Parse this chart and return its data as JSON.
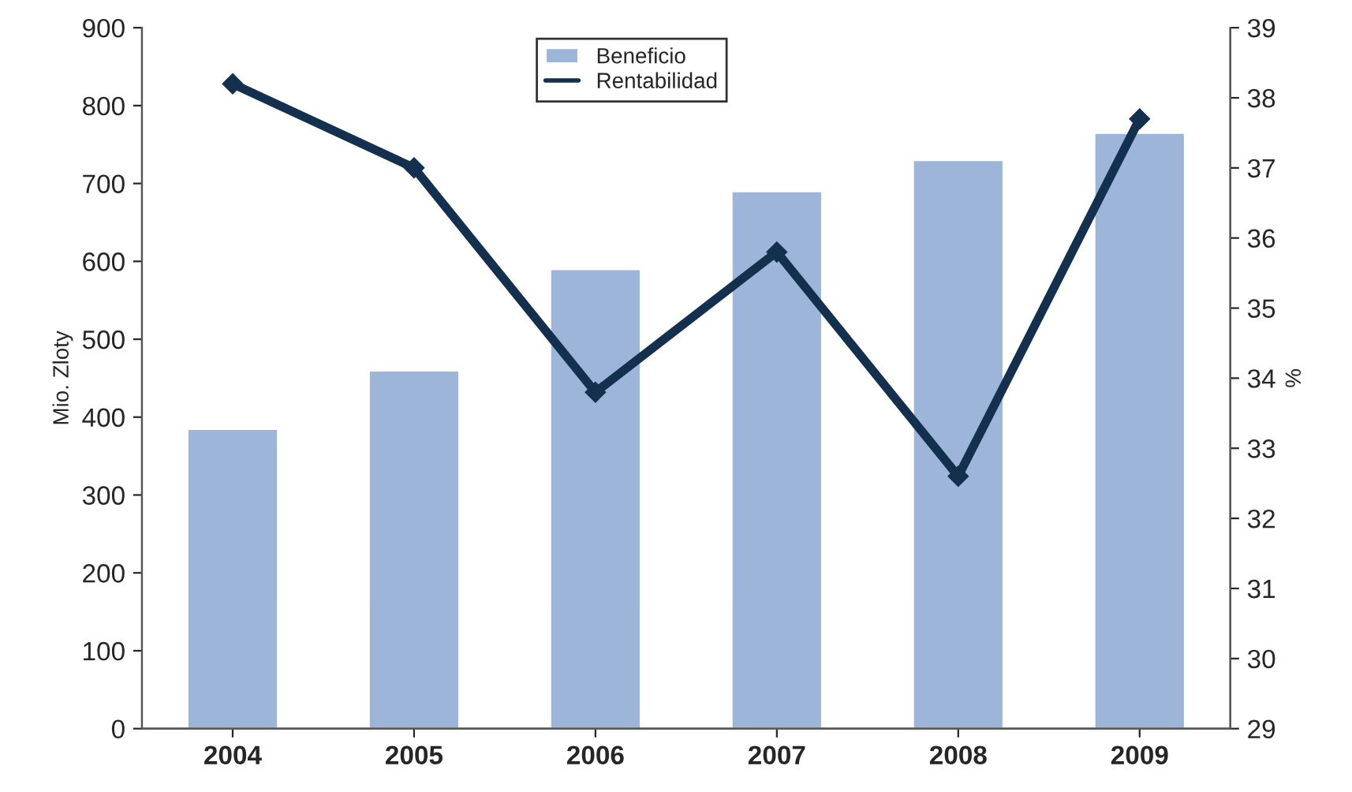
{
  "chart_data": {
    "type": "bar",
    "categories": [
      "2004",
      "2005",
      "2006",
      "2007",
      "2008",
      "2009"
    ],
    "series": [
      {
        "name": "Beneficio",
        "color": "#9db5d8",
        "values": [
          385,
          460,
          590,
          690,
          730,
          765
        ]
      },
      {
        "name": "Rentabilidad",
        "type": "line",
        "axis": "y2",
        "color": "#14304f",
        "marker": "diamond",
        "values": [
          38.2,
          37.0,
          33.8,
          35.8,
          32.6,
          37.7
        ]
      }
    ],
    "ylabel": "Mio. Zloty",
    "y2label": "%",
    "ylim": [
      0,
      900
    ],
    "yticks": [
      0,
      100,
      200,
      300,
      400,
      500,
      600,
      700,
      800,
      900
    ],
    "y2lim": [
      29,
      39
    ],
    "y2ticks": [
      29,
      30,
      31,
      32,
      33,
      34,
      35,
      36,
      37,
      38,
      39
    ],
    "legend": "top",
    "grid": false
  }
}
